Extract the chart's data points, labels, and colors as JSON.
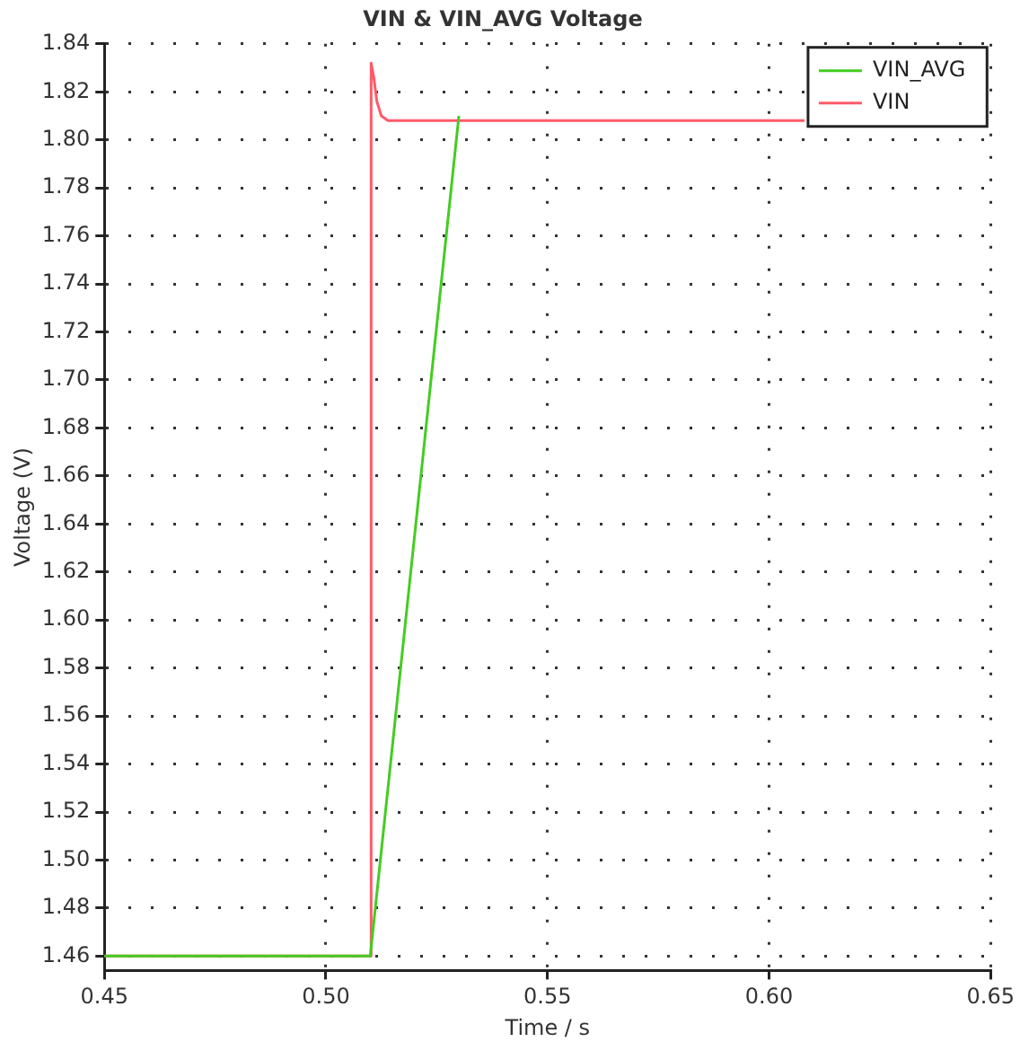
{
  "chart_data": {
    "type": "line",
    "title": "VIN & VIN_AVG Voltage",
    "xlabel": "Time / s",
    "ylabel": "Voltage (V)",
    "xlim": [
      0.45,
      0.65
    ],
    "xticks": [
      {
        "value": 0.45,
        "label": "0.45"
      },
      {
        "value": 0.5,
        "label": "0.50"
      },
      {
        "value": 0.55,
        "label": "0.55"
      },
      {
        "value": 0.6,
        "label": "0.60"
      },
      {
        "value": 0.65,
        "label": "0.65"
      }
    ],
    "ylim": [
      1.454,
      1.84
    ],
    "yticks": [
      {
        "value": 1.46,
        "label": "1.46"
      },
      {
        "value": 1.48,
        "label": "1.48"
      },
      {
        "value": 1.5,
        "label": "1.50"
      },
      {
        "value": 1.52,
        "label": "1.52"
      },
      {
        "value": 1.54,
        "label": "1.54"
      },
      {
        "value": 1.56,
        "label": "1.56"
      },
      {
        "value": 1.58,
        "label": "1.58"
      },
      {
        "value": 1.6,
        "label": "1.60"
      },
      {
        "value": 1.62,
        "label": "1.62"
      },
      {
        "value": 1.64,
        "label": "1.64"
      },
      {
        "value": 1.66,
        "label": "1.66"
      },
      {
        "value": 1.68,
        "label": "1.68"
      },
      {
        "value": 1.7,
        "label": "1.70"
      },
      {
        "value": 1.72,
        "label": "1.72"
      },
      {
        "value": 1.74,
        "label": "1.74"
      },
      {
        "value": 1.76,
        "label": "1.76"
      },
      {
        "value": 1.78,
        "label": "1.78"
      },
      {
        "value": 1.8,
        "label": "1.80"
      },
      {
        "value": 1.82,
        "label": "1.82"
      },
      {
        "value": 1.84,
        "label": "1.84"
      }
    ],
    "grid": true,
    "legend": "top right",
    "marker": "none",
    "line_style": "solid",
    "series": [
      {
        "name": "VIN_AVG",
        "color": "#44cc22",
        "x": [
          0.45,
          0.51,
          0.53
        ],
        "values": [
          1.46,
          1.46,
          1.81
        ]
      },
      {
        "name": "VIN",
        "color": "#ff5a6a",
        "x": [
          0.45,
          0.51,
          0.5102,
          0.5108,
          0.5115,
          0.5125,
          0.514,
          0.608
        ],
        "values": [
          1.46,
          1.46,
          1.832,
          1.826,
          1.816,
          1.81,
          1.808,
          1.808
        ]
      }
    ]
  }
}
